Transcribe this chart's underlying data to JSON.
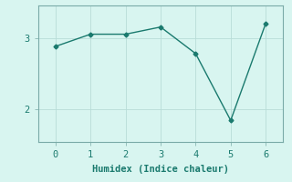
{
  "x": [
    0,
    1,
    2,
    3,
    4,
    5,
    6
  ],
  "y": [
    2.88,
    3.05,
    3.05,
    3.15,
    2.78,
    1.85,
    3.2
  ],
  "line_color": "#1a7a6e",
  "marker": "D",
  "marker_size": 2.5,
  "line_width": 1.0,
  "background_color": "#d8f5f0",
  "grid_color": "#b8ddd8",
  "spine_color": "#7aaba8",
  "xlabel": "Humidex (Indice chaleur)",
  "xlabel_fontsize": 7.5,
  "yticks": [
    2,
    3
  ],
  "xticks": [
    0,
    1,
    2,
    3,
    4,
    5,
    6
  ],
  "xlim": [
    -0.5,
    6.5
  ],
  "ylim": [
    1.55,
    3.45
  ],
  "tick_fontsize": 7.5,
  "linestyle": "-"
}
